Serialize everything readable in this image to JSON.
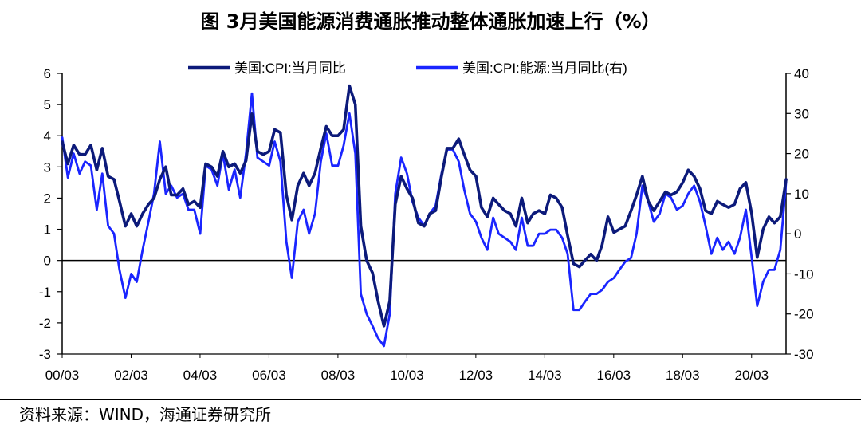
{
  "title": "图  3月美国能源消费通胀推动整体通胀加速上行（%）",
  "source": "资料来源：WIND，海通证券研究所",
  "colors": {
    "cpi": "#0c1a7a",
    "energy": "#1a25ff",
    "axis": "#000000"
  },
  "chart_data": {
    "type": "line",
    "title": "3月美国能源消费通胀推动整体通胀加速上行（%）",
    "x_labels": [
      "00/03",
      "02/03",
      "04/03",
      "06/03",
      "08/03",
      "10/03",
      "12/03",
      "14/03",
      "16/03",
      "18/03",
      "20/03"
    ],
    "x_start": 2000.1667,
    "x_end": 2021.1667,
    "y_left": {
      "min": -3,
      "max": 6,
      "ticks": [
        -3,
        -2,
        -1,
        0,
        1,
        2,
        3,
        4,
        5,
        6
      ]
    },
    "y_right": {
      "min": -30,
      "max": 40,
      "ticks": [
        -30,
        -20,
        -10,
        0,
        10,
        20,
        30,
        40
      ]
    },
    "legend": {
      "position": "top-center"
    },
    "series": [
      {
        "name": "美国:CPI:当月同比",
        "axis": "left",
        "points": [
          [
            2000.17,
            3.8
          ],
          [
            2000.33,
            3.1
          ],
          [
            2000.5,
            3.7
          ],
          [
            2000.67,
            3.4
          ],
          [
            2000.83,
            3.4
          ],
          [
            2001.0,
            3.7
          ],
          [
            2001.17,
            2.9
          ],
          [
            2001.33,
            3.6
          ],
          [
            2001.5,
            2.7
          ],
          [
            2001.67,
            2.6
          ],
          [
            2001.83,
            1.9
          ],
          [
            2002.0,
            1.1
          ],
          [
            2002.17,
            1.5
          ],
          [
            2002.33,
            1.1
          ],
          [
            2002.5,
            1.5
          ],
          [
            2002.67,
            1.8
          ],
          [
            2002.83,
            2.0
          ],
          [
            2003.0,
            2.6
          ],
          [
            2003.17,
            3.0
          ],
          [
            2003.33,
            2.1
          ],
          [
            2003.5,
            2.1
          ],
          [
            2003.67,
            2.3
          ],
          [
            2003.83,
            1.8
          ],
          [
            2004.0,
            1.9
          ],
          [
            2004.17,
            1.7
          ],
          [
            2004.33,
            3.1
          ],
          [
            2004.5,
            3.0
          ],
          [
            2004.67,
            2.7
          ],
          [
            2004.83,
            3.5
          ],
          [
            2005.0,
            3.0
          ],
          [
            2005.17,
            3.1
          ],
          [
            2005.33,
            2.8
          ],
          [
            2005.5,
            3.2
          ],
          [
            2005.67,
            4.7
          ],
          [
            2005.83,
            3.5
          ],
          [
            2006.0,
            3.4
          ],
          [
            2006.17,
            3.5
          ],
          [
            2006.33,
            4.2
          ],
          [
            2006.5,
            4.1
          ],
          [
            2006.67,
            2.1
          ],
          [
            2006.83,
            1.3
          ],
          [
            2007.0,
            2.4
          ],
          [
            2007.17,
            2.8
          ],
          [
            2007.33,
            2.4
          ],
          [
            2007.5,
            2.8
          ],
          [
            2007.67,
            3.6
          ],
          [
            2007.83,
            4.3
          ],
          [
            2008.0,
            4.0
          ],
          [
            2008.17,
            4.0
          ],
          [
            2008.33,
            4.2
          ],
          [
            2008.5,
            5.6
          ],
          [
            2008.67,
            5.0
          ],
          [
            2008.83,
            1.1
          ],
          [
            2009.0,
            0.0
          ],
          [
            2009.17,
            -0.4
          ],
          [
            2009.33,
            -1.3
          ],
          [
            2009.5,
            -2.1
          ],
          [
            2009.67,
            -1.3
          ],
          [
            2009.83,
            1.8
          ],
          [
            2010.0,
            2.7
          ],
          [
            2010.17,
            2.3
          ],
          [
            2010.33,
            2.0
          ],
          [
            2010.5,
            1.2
          ],
          [
            2010.67,
            1.1
          ],
          [
            2010.83,
            1.5
          ],
          [
            2011.0,
            1.6
          ],
          [
            2011.17,
            2.7
          ],
          [
            2011.33,
            3.6
          ],
          [
            2011.5,
            3.6
          ],
          [
            2011.67,
            3.9
          ],
          [
            2011.83,
            3.4
          ],
          [
            2012.0,
            2.9
          ],
          [
            2012.17,
            2.7
          ],
          [
            2012.33,
            1.7
          ],
          [
            2012.5,
            1.4
          ],
          [
            2012.67,
            2.0
          ],
          [
            2012.83,
            1.8
          ],
          [
            2013.0,
            1.6
          ],
          [
            2013.17,
            1.5
          ],
          [
            2013.33,
            1.1
          ],
          [
            2013.5,
            2.0
          ],
          [
            2013.67,
            1.2
          ],
          [
            2013.83,
            1.5
          ],
          [
            2014.0,
            1.6
          ],
          [
            2014.17,
            1.5
          ],
          [
            2014.33,
            2.1
          ],
          [
            2014.5,
            2.0
          ],
          [
            2014.67,
            1.7
          ],
          [
            2014.83,
            0.8
          ],
          [
            2015.0,
            -0.1
          ],
          [
            2015.17,
            -0.2
          ],
          [
            2015.33,
            0.0
          ],
          [
            2015.5,
            0.2
          ],
          [
            2015.67,
            0.0
          ],
          [
            2015.83,
            0.5
          ],
          [
            2016.0,
            1.4
          ],
          [
            2016.17,
            0.9
          ],
          [
            2016.33,
            1.0
          ],
          [
            2016.5,
            1.1
          ],
          [
            2016.67,
            1.6
          ],
          [
            2016.83,
            2.1
          ],
          [
            2017.0,
            2.7
          ],
          [
            2017.17,
            1.9
          ],
          [
            2017.33,
            1.6
          ],
          [
            2017.5,
            1.9
          ],
          [
            2017.67,
            2.2
          ],
          [
            2017.83,
            2.1
          ],
          [
            2018.0,
            2.2
          ],
          [
            2018.17,
            2.5
          ],
          [
            2018.33,
            2.9
          ],
          [
            2018.5,
            2.7
          ],
          [
            2018.67,
            2.3
          ],
          [
            2018.83,
            1.6
          ],
          [
            2019.0,
            1.5
          ],
          [
            2019.17,
            1.9
          ],
          [
            2019.33,
            1.8
          ],
          [
            2019.5,
            1.7
          ],
          [
            2019.67,
            1.8
          ],
          [
            2019.83,
            2.3
          ],
          [
            2020.0,
            2.5
          ],
          [
            2020.17,
            1.5
          ],
          [
            2020.33,
            0.1
          ],
          [
            2020.5,
            1.0
          ],
          [
            2020.67,
            1.4
          ],
          [
            2020.83,
            1.2
          ],
          [
            2021.0,
            1.4
          ],
          [
            2021.17,
            2.6
          ]
        ]
      },
      {
        "name": "美国:CPI:能源:当月同比(右)",
        "axis": "right",
        "points": [
          [
            2000.17,
            24
          ],
          [
            2000.33,
            14
          ],
          [
            2000.5,
            20
          ],
          [
            2000.67,
            15
          ],
          [
            2000.83,
            18
          ],
          [
            2001.0,
            17
          ],
          [
            2001.17,
            6
          ],
          [
            2001.33,
            15
          ],
          [
            2001.5,
            2
          ],
          [
            2001.67,
            0
          ],
          [
            2001.83,
            -9
          ],
          [
            2002.0,
            -16
          ],
          [
            2002.17,
            -10
          ],
          [
            2002.33,
            -12
          ],
          [
            2002.5,
            -4
          ],
          [
            2002.67,
            3
          ],
          [
            2002.83,
            10
          ],
          [
            2003.0,
            23
          ],
          [
            2003.17,
            10
          ],
          [
            2003.33,
            12
          ],
          [
            2003.5,
            9
          ],
          [
            2003.67,
            10
          ],
          [
            2003.83,
            6
          ],
          [
            2004.0,
            6
          ],
          [
            2004.17,
            0
          ],
          [
            2004.33,
            17
          ],
          [
            2004.5,
            16
          ],
          [
            2004.67,
            12
          ],
          [
            2004.83,
            20
          ],
          [
            2005.0,
            11
          ],
          [
            2005.17,
            16
          ],
          [
            2005.33,
            9
          ],
          [
            2005.5,
            20
          ],
          [
            2005.67,
            35
          ],
          [
            2005.83,
            19
          ],
          [
            2006.0,
            18
          ],
          [
            2006.17,
            17
          ],
          [
            2006.33,
            23
          ],
          [
            2006.5,
            18
          ],
          [
            2006.67,
            -2
          ],
          [
            2006.83,
            -11
          ],
          [
            2007.0,
            3
          ],
          [
            2007.17,
            6
          ],
          [
            2007.33,
            0
          ],
          [
            2007.5,
            5
          ],
          [
            2007.67,
            18
          ],
          [
            2007.83,
            25
          ],
          [
            2008.0,
            17
          ],
          [
            2008.17,
            17
          ],
          [
            2008.33,
            22
          ],
          [
            2008.5,
            30
          ],
          [
            2008.67,
            20
          ],
          [
            2008.83,
            -15
          ],
          [
            2009.0,
            -20
          ],
          [
            2009.17,
            -23
          ],
          [
            2009.33,
            -26
          ],
          [
            2009.5,
            -28
          ],
          [
            2009.67,
            -20
          ],
          [
            2009.83,
            10
          ],
          [
            2010.0,
            19
          ],
          [
            2010.17,
            15
          ],
          [
            2010.33,
            8
          ],
          [
            2010.5,
            4
          ],
          [
            2010.67,
            2
          ],
          [
            2010.83,
            5
          ],
          [
            2011.0,
            7
          ],
          [
            2011.17,
            15
          ],
          [
            2011.33,
            21
          ],
          [
            2011.5,
            21
          ],
          [
            2011.67,
            18
          ],
          [
            2011.83,
            11
          ],
          [
            2012.0,
            5
          ],
          [
            2012.17,
            3
          ],
          [
            2012.33,
            -1
          ],
          [
            2012.5,
            -4
          ],
          [
            2012.67,
            4
          ],
          [
            2012.83,
            0
          ],
          [
            2013.0,
            -1
          ],
          [
            2013.17,
            -2
          ],
          [
            2013.33,
            -4
          ],
          [
            2013.5,
            4
          ],
          [
            2013.67,
            -3
          ],
          [
            2013.83,
            -3
          ],
          [
            2014.0,
            0
          ],
          [
            2014.17,
            0
          ],
          [
            2014.33,
            1
          ],
          [
            2014.5,
            1
          ],
          [
            2014.67,
            -1
          ],
          [
            2014.83,
            -5
          ],
          [
            2015.0,
            -19
          ],
          [
            2015.17,
            -19
          ],
          [
            2015.33,
            -17
          ],
          [
            2015.5,
            -15
          ],
          [
            2015.67,
            -15
          ],
          [
            2015.83,
            -14
          ],
          [
            2016.0,
            -12
          ],
          [
            2016.17,
            -11
          ],
          [
            2016.33,
            -9
          ],
          [
            2016.5,
            -7
          ],
          [
            2016.67,
            -6
          ],
          [
            2016.83,
            0
          ],
          [
            2017.0,
            12
          ],
          [
            2017.17,
            8
          ],
          [
            2017.33,
            3
          ],
          [
            2017.5,
            5
          ],
          [
            2017.67,
            10
          ],
          [
            2017.83,
            9
          ],
          [
            2018.0,
            6
          ],
          [
            2018.17,
            7
          ],
          [
            2018.33,
            10
          ],
          [
            2018.5,
            12
          ],
          [
            2018.67,
            8
          ],
          [
            2018.83,
            2
          ],
          [
            2019.0,
            -5
          ],
          [
            2019.17,
            -1
          ],
          [
            2019.33,
            -4
          ],
          [
            2019.5,
            -2
          ],
          [
            2019.67,
            -5
          ],
          [
            2019.83,
            -1
          ],
          [
            2020.0,
            6
          ],
          [
            2020.17,
            -6
          ],
          [
            2020.33,
            -18
          ],
          [
            2020.5,
            -12
          ],
          [
            2020.67,
            -9
          ],
          [
            2020.83,
            -9
          ],
          [
            2021.0,
            -4
          ],
          [
            2021.17,
            13
          ]
        ]
      }
    ]
  }
}
